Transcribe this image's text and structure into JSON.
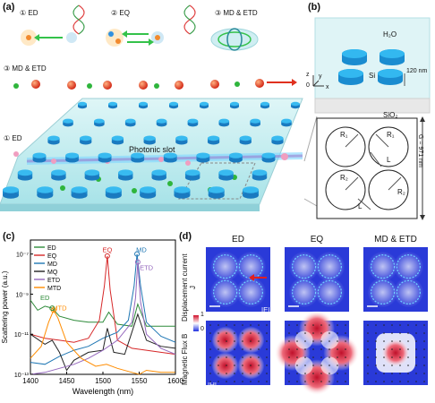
{
  "panels": {
    "a": "(a)",
    "b": "(b)",
    "c": "(c)",
    "d": "(d)"
  },
  "panel_a": {
    "modes_top": [
      "① ED",
      "② EQ",
      "③ MD & ETD"
    ],
    "label_md_etd": "③ MD & ETD",
    "label_ed": "① ED",
    "photonic_slot": "Photonic slot"
  },
  "panel_b": {
    "water": "H₂O",
    "si": "Si",
    "substrate": "SiO₂",
    "height": "120 nm",
    "axis_z": "z",
    "axis_y": "y",
    "axis_x": "x",
    "origin": "0",
    "radius_labels": [
      "R₁",
      "R₁",
      "R₂",
      "R₂"
    ],
    "gap_labels": [
      "L",
      "L"
    ],
    "period": "G = 971 nm"
  },
  "chart_data": {
    "type": "line",
    "title": "",
    "xlabel": "Wavelength (nm)",
    "ylabel": "Scattering power (a.u.)",
    "xlim": [
      1400,
      1600
    ],
    "ylim_log10": [
      -13,
      -6.3
    ],
    "x_ticks": [
      "1400",
      "1450",
      "1500",
      "1550",
      "1600"
    ],
    "y_ticks": [
      "10⁻¹³",
      "10⁻¹¹",
      "10⁻⁹",
      "10⁻⁷"
    ],
    "legend": [
      "ED",
      "EQ",
      "MD",
      "MQ",
      "ETD",
      "MTD"
    ],
    "legend_position": "top-left",
    "annotations": [
      "EQ",
      "MD",
      "ETD",
      "ED",
      "MTD"
    ],
    "series": [
      {
        "name": "ED",
        "color": "#2e8b3a",
        "x": [
          1400,
          1410,
          1420,
          1430,
          1440,
          1460,
          1480,
          1500,
          1508,
          1520,
          1540,
          1548,
          1560,
          1580,
          1600
        ],
        "y": [
          -9.3,
          -9.8,
          -9.6,
          -9.7,
          -10.1,
          -10.3,
          -10.4,
          -10.4,
          -9.9,
          -10.5,
          -10.6,
          -9.5,
          -10.6,
          -10.6,
          -10.6
        ]
      },
      {
        "name": "EQ",
        "color": "#d62728",
        "x": [
          1400,
          1420,
          1440,
          1460,
          1480,
          1495,
          1502,
          1506,
          1510,
          1520,
          1540,
          1560,
          1580,
          1600
        ],
        "y": [
          -11.0,
          -11.2,
          -11.3,
          -11.4,
          -11.2,
          -10.3,
          -8.6,
          -7.1,
          -8.8,
          -11.3,
          -11.7,
          -11.8,
          -11.9,
          -12.0
        ]
      },
      {
        "name": "MD",
        "color": "#1f77b4",
        "x": [
          1400,
          1420,
          1440,
          1460,
          1480,
          1500,
          1520,
          1535,
          1543,
          1547,
          1552,
          1560,
          1580,
          1600
        ],
        "y": [
          -12.4,
          -12.5,
          -12.1,
          -11.8,
          -11.6,
          -11.2,
          -10.9,
          -10.3,
          -8.6,
          -7.0,
          -8.6,
          -10.4,
          -11.1,
          -11.4
        ]
      },
      {
        "name": "MQ",
        "color": "#222222",
        "x": [
          1400,
          1420,
          1430,
          1440,
          1450,
          1460,
          1480,
          1500,
          1506,
          1515,
          1530,
          1548,
          1560,
          1580,
          1600
        ],
        "y": [
          -11.0,
          -11.5,
          -11.3,
          -11.9,
          -12.8,
          -12.3,
          -11.9,
          -11.8,
          -10.7,
          -11.9,
          -12.0,
          -10.0,
          -11.3,
          -11.6,
          -11.7
        ]
      },
      {
        "name": "ETD",
        "color": "#9467bd",
        "x": [
          1400,
          1420,
          1440,
          1460,
          1480,
          1500,
          1520,
          1540,
          1545,
          1548,
          1552,
          1560,
          1580,
          1600
        ],
        "y": [
          -13.0,
          -12.9,
          -12.7,
          -12.5,
          -12.2,
          -11.8,
          -11.3,
          -10.4,
          -9.2,
          -7.4,
          -9.4,
          -11.0,
          -11.7,
          -12.0
        ]
      },
      {
        "name": "MTD",
        "color": "#ff8c00",
        "x": [
          1400,
          1415,
          1425,
          1432,
          1438,
          1450,
          1470,
          1490,
          1505,
          1520,
          1540,
          1550,
          1560,
          1580,
          1600
        ],
        "y": [
          -12.2,
          -11.6,
          -10.4,
          -9.8,
          -10.2,
          -11.4,
          -12.2,
          -12.6,
          -12.5,
          -12.7,
          -12.9,
          -13.0,
          -12.8,
          -12.9,
          -12.9
        ]
      }
    ]
  },
  "panel_d": {
    "columns": [
      "ED",
      "EQ",
      "MD & ETD"
    ],
    "row1_label": "Displacement current J",
    "row2_label": "Magnetic Flux B",
    "row1_field": "|E|",
    "row2_field": "|H|",
    "colorbar_max": "1",
    "colorbar_min": "0"
  }
}
